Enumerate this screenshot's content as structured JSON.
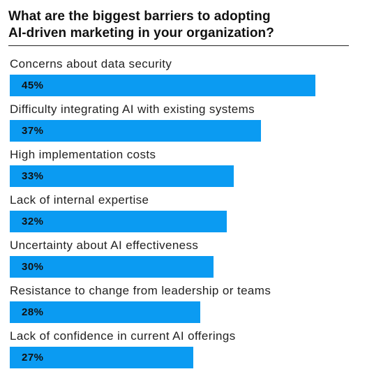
{
  "chart_data": {
    "type": "bar",
    "orientation": "horizontal",
    "title": "What are the biggest barriers to adopting\nAI-driven marketing in your organization?",
    "categories": [
      "Concerns about data security",
      "Difficulty integrating AI with existing systems",
      "High implementation costs",
      "Lack of internal expertise",
      "Uncertainty about AI effectiveness",
      "Resistance to change from leadership or teams",
      "Lack of confidence in current AI offerings"
    ],
    "values": [
      45,
      37,
      33,
      32,
      30,
      28,
      27
    ],
    "value_labels": [
      "45%",
      "37%",
      "33%",
      "32%",
      "30%",
      "28%",
      "27%"
    ],
    "unit": "%",
    "grid": false,
    "bar_color": "#0b9bf2"
  }
}
